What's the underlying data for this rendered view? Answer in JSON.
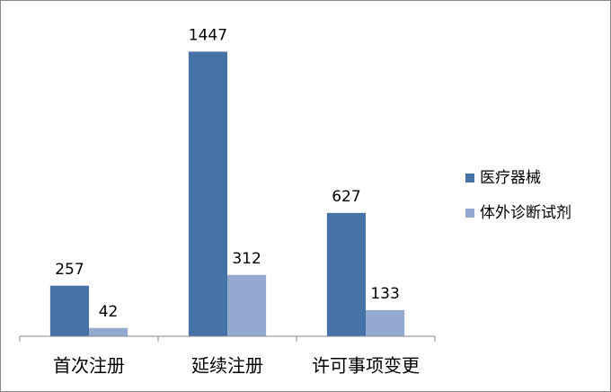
{
  "chart_data": {
    "type": "bar",
    "categories": [
      "首次注册",
      "延续注册",
      "许可事项变更"
    ],
    "series": [
      {
        "name": "医疗器械",
        "color": "#4572a7",
        "values": [
          257,
          1447,
          627
        ]
      },
      {
        "name": "体外诊断试剂",
        "color": "#93a9cf",
        "values": [
          42,
          312,
          133
        ]
      }
    ],
    "ylim": [
      0,
      1600
    ],
    "legend": "right"
  }
}
